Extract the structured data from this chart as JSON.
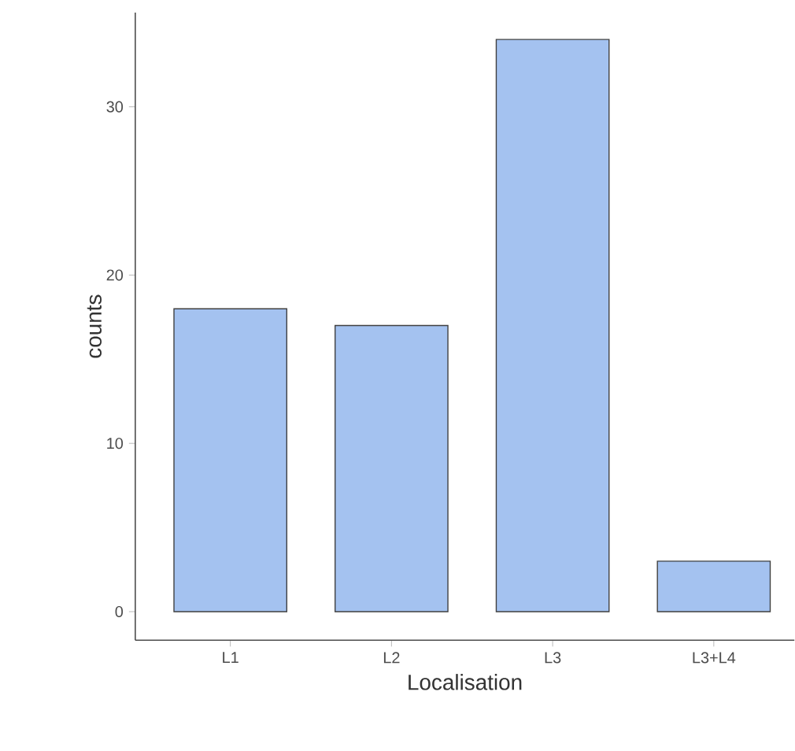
{
  "chart_data": {
    "type": "bar",
    "xlabel": "Localisation",
    "ylabel": "counts",
    "categories": [
      "L1",
      "L2",
      "L3",
      "L3+L4"
    ],
    "values": [
      18,
      17,
      34,
      3
    ],
    "color": "#a4c2f0",
    "ylim": [
      -1.7,
      35.6
    ],
    "yticks": [
      0,
      10,
      20,
      30
    ]
  }
}
